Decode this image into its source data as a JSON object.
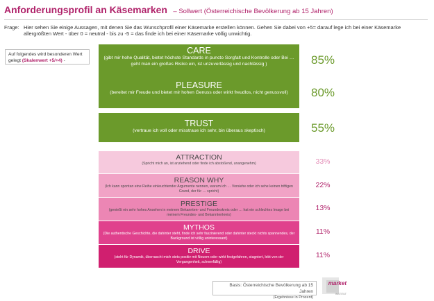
{
  "header": {
    "title": "Anforderungsprofil an Käsemarken",
    "subtitle": "– Sollwert (Österreichische Bevölkerung ab 15 Jahren)"
  },
  "question": {
    "label": "Frage:",
    "text": "Hier sehen Sie einige Aussagen, mit denen Sie das Wunschprofil einer Käsemarke erstellen können. Gehen Sie dabei von +5= darauf lege ich bei einer Käsemarke allergrößten Wert - über 0 = neutral - bis zu -5 = das finde ich bei einer Käsemarke völlig unwichtig."
  },
  "side_note": {
    "text": "Auf folgendes wird besonderen Wert gelegt",
    "highlight": "(Skalenwert +5/+4)",
    "suffix": "-"
  },
  "colors": {
    "green": "#6b9a2b",
    "accent": "#b0226a"
  },
  "items": [
    {
      "title": "CARE",
      "desc": "(gibt mir hohe Qualität, bietet höchste Standards in puncto Sorgfalt und Kontrolle oder Bei … geht man ein großes Risiko ein, ist unzuverlässig und nachlässig )",
      "pct": "85%",
      "color": "#6b9a2b"
    },
    {
      "title": "PLEASURE",
      "desc": "(bereitet mir Freude und bietet mir hohen Genuss oder wirkt freudlos, nicht genussvoll)",
      "pct": "80%",
      "color": "#6b9a2b"
    },
    {
      "title": "TRUST",
      "desc": "(vertraue ich voll oder misstraue ich sehr, bin überaus skeptisch)",
      "pct": "55%",
      "color": "#6b9a2b"
    },
    {
      "title": "ATTRACTION",
      "desc": "(Spricht mich an, ist anziehend oder finde ich abstoßend, unangenehm)",
      "pct": "33%",
      "color": "#f6c9dd"
    },
    {
      "title": "REASON WHY",
      "desc": "(Ich kann spontan eine Reihe einleuchtender Argumente nennen, warum ich … Vorsiehe oder ich sehe keinen triftigen Grund, der für … spricht)",
      "pct": "22%",
      "color": "#f1a3c6"
    },
    {
      "title": "PRESTIGE",
      "desc": "(genießt ein sehr hohes Ansehen in meinem Bekannten- und Freundeskreis oder … hat ein schlechtes Image bei meinem Freundes- und Bekanntenkreis)",
      "pct": "13%",
      "color": "#ec86b4"
    },
    {
      "title": "MYTHOS",
      "desc": "(Die authentische Geschichte, die dahinter steht, finde ich sehr faszinierend oder dahinter steckt nichts spannendes, der Background ist völlig uninteressant)",
      "pct": "11%",
      "color": "#e0418d"
    },
    {
      "title": "DRIVE",
      "desc": "(steht für Dynamik, überrascht mich stets positiv mit Neuem oder wirkt festgefahren, stagniert, lebt von der Vergangenheit, schwerfällig)",
      "pct": "11%",
      "color": "#d01f6f"
    }
  ],
  "footer": {
    "basis": "Basis: Österreichische Bevölkerung ab 15 Jahren",
    "note": "(Ergebnisse in Prozent)"
  },
  "logo": {
    "word": "market",
    "sub": "INSTITUT"
  }
}
